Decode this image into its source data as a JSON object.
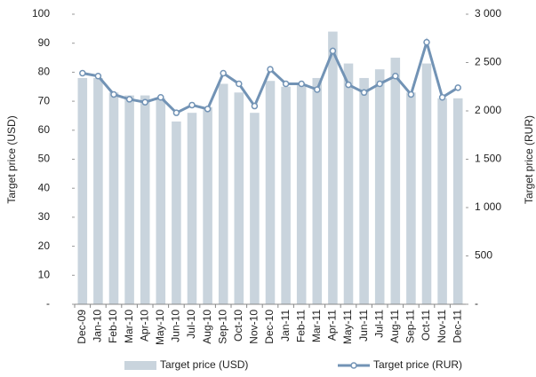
{
  "chart_data": {
    "type": "bar_line",
    "categories": [
      "Dec-09",
      "Jan-10",
      "Feb-10",
      "Mar-10",
      "Apr-10",
      "May-10",
      "Jun-10",
      "Jul-10",
      "Aug-10",
      "Sep-10",
      "Oct-10",
      "Nov-10",
      "Dec-10",
      "Jan-11",
      "Feb-11",
      "Mar-11",
      "Apr-11",
      "May-11",
      "Jun-11",
      "Jul-11",
      "Aug-11",
      "Sep-11",
      "Oct-11",
      "Nov-11",
      "Dec-11"
    ],
    "series": [
      {
        "name": "Target price (USD)",
        "type": "bar",
        "color": "#c9d4dd",
        "values": [
          78,
          78,
          73,
          72,
          72,
          71,
          63,
          66,
          68,
          76,
          73,
          66,
          77,
          75,
          76,
          78,
          94,
          83,
          78,
          81,
          85,
          73,
          83,
          71,
          71
        ]
      },
      {
        "name": "Target price (RUR)",
        "type": "line",
        "axis": "y2",
        "color": "#7293b5",
        "values": [
          2390,
          2360,
          2170,
          2120,
          2090,
          2140,
          1980,
          2060,
          2020,
          2390,
          2280,
          2050,
          2430,
          2280,
          2280,
          2220,
          2620,
          2270,
          2190,
          2280,
          2360,
          2170,
          2710,
          2140,
          2240
        ]
      }
    ],
    "ylabel": "Target price (USD)",
    "y2label": "Target price (RUR)",
    "ylim": [
      0,
      100
    ],
    "yticks": [
      {
        "value": 0,
        "label": "-"
      },
      10,
      20,
      30,
      40,
      50,
      60,
      70,
      80,
      90,
      100
    ],
    "y2lim": [
      0,
      3000
    ],
    "y2ticks": [
      {
        "value": 0,
        "label": "-"
      },
      500,
      {
        "value": 1000,
        "label": "1 000"
      },
      {
        "value": 1500,
        "label": "1 500"
      },
      {
        "value": 2000,
        "label": "2 000"
      },
      {
        "value": 2500,
        "label": "2 500"
      },
      {
        "value": 3000,
        "label": "3 000"
      }
    ],
    "legend": "bottom"
  }
}
